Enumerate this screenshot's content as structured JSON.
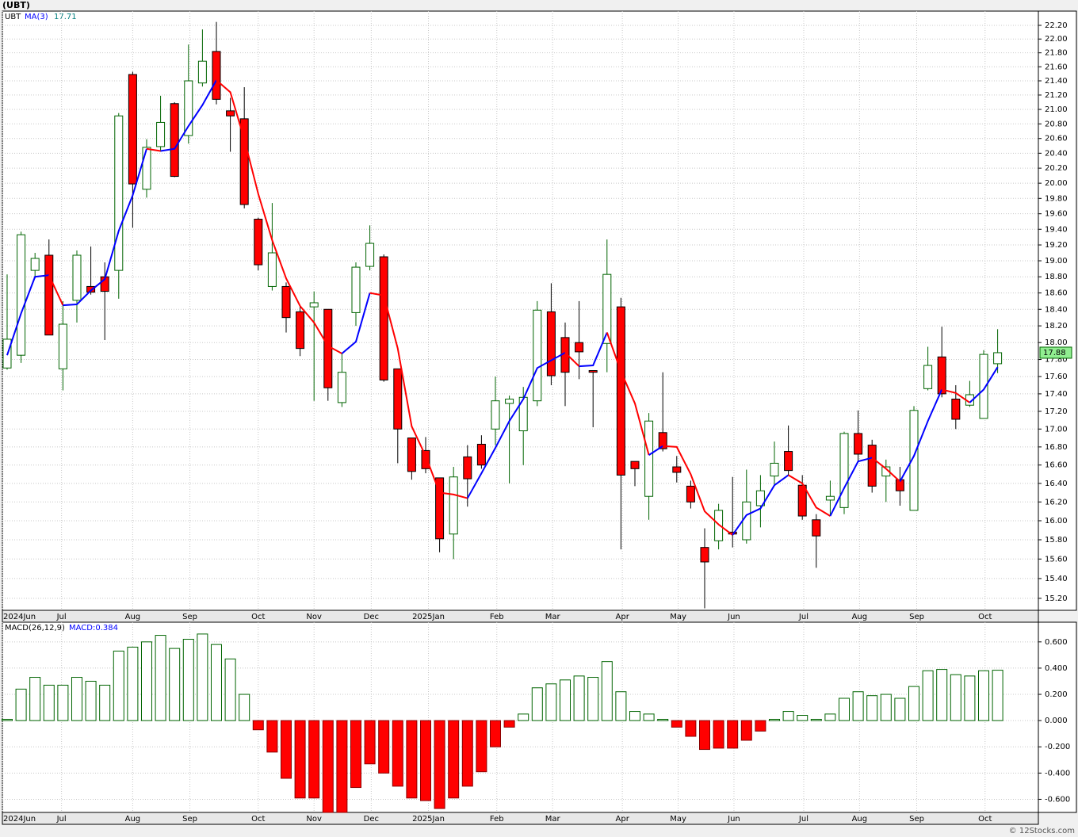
{
  "chart_data": [
    {
      "type": "candlestick",
      "title": "(UBT)",
      "symbol": "UBT",
      "ma_name": "MA(3)",
      "log": true,
      "grid": true,
      "xlim": [
        -0.34,
        73.92
      ],
      "xticks": [
        {
          "value": -0.34,
          "label": "2024Jun"
        },
        {
          "value": 3.9,
          "label": "Jul"
        },
        {
          "value": 9.0,
          "label": "Aug"
        },
        {
          "value": 13.1,
          "label": "Sep"
        },
        {
          "value": 18.0,
          "label": "Oct"
        },
        {
          "value": 22.0,
          "label": "Nov"
        },
        {
          "value": 26.1,
          "label": "Dec"
        },
        {
          "value": 30.2,
          "label": "2025Jan"
        },
        {
          "value": 35.1,
          "label": "Feb"
        },
        {
          "value": 39.1,
          "label": "Mar"
        },
        {
          "value": 44.1,
          "label": "Apr"
        },
        {
          "value": 48.1,
          "label": "May"
        },
        {
          "value": 52.1,
          "label": "Jun"
        },
        {
          "value": 57.1,
          "label": "Jul"
        },
        {
          "value": 61.1,
          "label": "Aug"
        },
        {
          "value": 65.2,
          "label": "Sep"
        },
        {
          "value": 70.1,
          "label": "Oct"
        }
      ],
      "ylim": [
        15.08,
        22.41
      ],
      "yticks": [
        {
          "value": 15.2,
          "label": "15.20"
        },
        {
          "value": 15.4,
          "label": "15.40"
        },
        {
          "value": 15.6,
          "label": "15.60"
        },
        {
          "value": 15.8,
          "label": "15.80"
        },
        {
          "value": 16,
          "label": "16.00"
        },
        {
          "value": 16.2,
          "label": "16.20"
        },
        {
          "value": 16.4,
          "label": "16.40"
        },
        {
          "value": 16.6,
          "label": "16.60"
        },
        {
          "value": 16.8,
          "label": "16.80"
        },
        {
          "value": 17,
          "label": "17.00"
        },
        {
          "value": 17.2,
          "label": "17.20"
        },
        {
          "value": 17.4,
          "label": "17.40"
        },
        {
          "value": 17.6,
          "label": "17.60"
        },
        {
          "value": 17.8,
          "label": "17.80"
        },
        {
          "value": 18,
          "label": "18.00"
        },
        {
          "value": 18.2,
          "label": "18.20"
        },
        {
          "value": 18.4,
          "label": "18.40"
        },
        {
          "value": 18.6,
          "label": "18.60"
        },
        {
          "value": 18.8,
          "label": "18.80"
        },
        {
          "value": 19,
          "label": "19.00"
        },
        {
          "value": 19.2,
          "label": "19.20"
        },
        {
          "value": 19.4,
          "label": "19.40"
        },
        {
          "value": 19.6,
          "label": "19.60"
        },
        {
          "value": 19.8,
          "label": "19.80"
        },
        {
          "value": 20,
          "label": "20.00"
        },
        {
          "value": 20.2,
          "label": "20.20"
        },
        {
          "value": 20.4,
          "label": "20.40"
        },
        {
          "value": 20.6,
          "label": "20.60"
        },
        {
          "value": 20.8,
          "label": "20.80"
        },
        {
          "value": 21,
          "label": "21.00"
        },
        {
          "value": 21.2,
          "label": "21.20"
        },
        {
          "value": 21.4,
          "label": "21.40"
        },
        {
          "value": 21.6,
          "label": "21.60"
        },
        {
          "value": 21.8,
          "label": "21.80"
        },
        {
          "value": 22,
          "label": "22.00"
        },
        {
          "value": 22.2,
          "label": "22.20"
        }
      ],
      "open": [
        17.7,
        17.85,
        18.88,
        19.07,
        17.69,
        18.51,
        18.68,
        18.8,
        18.88,
        21.49,
        19.92,
        20.49,
        21.08,
        20.64,
        21.37,
        21.82,
        20.98,
        20.87,
        19.53,
        18.68,
        18.68,
        18.37,
        18.43,
        18.4,
        17.3,
        18.36,
        18.93,
        19.05,
        17.69,
        16.9,
        16.76,
        16.46,
        15.86,
        16.69,
        16.83,
        17.0,
        17.29,
        16.98,
        17.32,
        18.37,
        18.06,
        18.0,
        17.67,
        17.99,
        18.43,
        16.64,
        16.26,
        16.96,
        16.58,
        16.37,
        15.72,
        15.79,
        15.88,
        15.8,
        16.16,
        16.48,
        16.75,
        16.38,
        16.01,
        16.22,
        16.14,
        16.95,
        16.82,
        16.48,
        16.44,
        16.11,
        17.46,
        17.83,
        17.34,
        17.27,
        17.12,
        17.75
      ],
      "high": [
        18.83,
        19.37,
        19.1,
        19.27,
        18.5,
        19.13,
        19.18,
        18.98,
        20.95,
        21.53,
        20.59,
        21.19,
        21.1,
        21.92,
        22.14,
        22.25,
        21.16,
        21.31,
        19.55,
        19.74,
        18.73,
        18.44,
        18.62,
        18.4,
        17.87,
        18.98,
        19.45,
        19.08,
        17.69,
        16.9,
        16.91,
        16.46,
        16.58,
        16.82,
        16.93,
        17.6,
        17.38,
        17.48,
        18.5,
        18.72,
        18.24,
        18.5,
        17.67,
        19.27,
        18.54,
        16.64,
        17.18,
        17.65,
        16.7,
        16.43,
        15.92,
        16.18,
        16.47,
        16.55,
        16.49,
        16.86,
        17.04,
        16.49,
        16.07,
        16.43,
        16.97,
        17.21,
        16.88,
        16.66,
        16.58,
        17.26,
        17.95,
        18.19,
        17.5,
        17.55,
        17.91,
        18.16
      ],
      "low": [
        17.68,
        17.76,
        18.78,
        18.09,
        17.44,
        18.24,
        18.58,
        18.03,
        18.53,
        19.42,
        19.81,
        20.42,
        20.08,
        20.53,
        21.32,
        21.07,
        20.42,
        19.67,
        18.88,
        18.63,
        18.12,
        17.84,
        17.32,
        17.32,
        17.25,
        18.2,
        18.88,
        17.54,
        16.62,
        16.44,
        16.51,
        15.67,
        15.6,
        16.15,
        16.56,
        16.82,
        16.4,
        16.6,
        17.26,
        17.5,
        17.26,
        17.57,
        17.02,
        17.65,
        15.7,
        16.37,
        16.01,
        16.75,
        16.41,
        16.13,
        15.1,
        15.7,
        15.72,
        15.76,
        15.93,
        16.38,
        16.49,
        16.01,
        15.51,
        16.05,
        16.07,
        16.64,
        16.3,
        16.2,
        16.16,
        16.11,
        17.44,
        17.36,
        17.0,
        17.25,
        17.12,
        17.64
      ],
      "close": [
        18.04,
        19.33,
        19.03,
        18.09,
        18.22,
        19.07,
        18.61,
        18.62,
        20.91,
        19.99,
        20.48,
        20.82,
        20.09,
        21.4,
        21.68,
        21.14,
        20.91,
        19.72,
        18.95,
        19.1,
        18.3,
        17.93,
        18.48,
        17.47,
        17.65,
        18.92,
        19.22,
        17.56,
        17.0,
        16.53,
        16.56,
        15.81,
        16.47,
        16.45,
        16.6,
        17.32,
        17.34,
        17.36,
        18.39,
        17.61,
        17.65,
        17.89,
        17.65,
        18.83,
        16.49,
        16.56,
        17.09,
        16.78,
        16.52,
        16.2,
        15.57,
        16.11,
        15.86,
        16.2,
        16.32,
        16.62,
        16.54,
        16.05,
        15.84,
        16.26,
        16.95,
        16.72,
        16.37,
        16.58,
        16.32,
        17.21,
        17.73,
        17.4,
        17.11,
        17.39,
        17.86,
        17.88
      ],
      "ma": [
        17.85,
        18.35,
        18.8,
        18.82,
        18.45,
        18.46,
        18.63,
        18.77,
        19.38,
        19.84,
        20.46,
        20.43,
        20.46,
        20.77,
        21.06,
        21.41,
        21.24,
        20.59,
        19.86,
        19.26,
        18.78,
        18.44,
        18.24,
        17.96,
        17.87,
        18.01,
        18.6,
        18.57,
        17.93,
        17.03,
        16.7,
        16.3,
        16.28,
        16.24,
        16.51,
        16.79,
        17.09,
        17.34,
        17.7,
        17.79,
        17.88,
        17.72,
        17.73,
        18.12,
        17.66,
        17.29,
        16.71,
        16.81,
        16.8,
        16.5,
        16.1,
        15.96,
        15.85,
        16.06,
        16.13,
        16.38,
        16.49,
        16.4,
        16.14,
        16.05,
        16.35,
        16.64,
        16.68,
        16.56,
        16.42,
        16.7,
        17.09,
        17.45,
        17.41,
        17.3,
        17.45,
        17.71
      ],
      "up_color": "#006400",
      "down_color": "#ff0000",
      "ma_up_color": "#0000ff",
      "ma_down_color": "#ff0000",
      "last_color": "#90ee90"
    },
    {
      "type": "bar",
      "title": "MACD(26,12,9)",
      "value_label": "MACD:0.384",
      "grid": true,
      "xlim": [
        -0.34,
        73.92
      ],
      "xticks": [
        {
          "value": -0.34,
          "label": "2024Jun"
        },
        {
          "value": 3.9,
          "label": "Jul"
        },
        {
          "value": 9.0,
          "label": "Aug"
        },
        {
          "value": 13.1,
          "label": "Sep"
        },
        {
          "value": 18.0,
          "label": "Oct"
        },
        {
          "value": 22.0,
          "label": "Nov"
        },
        {
          "value": 26.1,
          "label": "Dec"
        },
        {
          "value": 30.2,
          "label": "2025Jan"
        },
        {
          "value": 35.1,
          "label": "Feb"
        },
        {
          "value": 39.1,
          "label": "Mar"
        },
        {
          "value": 44.1,
          "label": "Apr"
        },
        {
          "value": 48.1,
          "label": "May"
        },
        {
          "value": 52.1,
          "label": "Jun"
        },
        {
          "value": 57.1,
          "label": "Jul"
        },
        {
          "value": 61.1,
          "label": "Aug"
        },
        {
          "value": 65.2,
          "label": "Sep"
        },
        {
          "value": 70.1,
          "label": "Oct"
        }
      ],
      "ylim": [
        -0.7,
        0.75
      ],
      "yticks": [
        {
          "value": -0.6,
          "label": "-0.600"
        },
        {
          "value": -0.4,
          "label": "-0.400"
        },
        {
          "value": -0.2,
          "label": "-0.200"
        },
        {
          "value": 0,
          "label": "0.000"
        },
        {
          "value": 0.2,
          "label": "0.200"
        },
        {
          "value": 0.4,
          "label": "0.400"
        },
        {
          "value": 0.6,
          "label": "0.600"
        }
      ],
      "values": [
        0.01,
        0.24,
        0.33,
        0.27,
        0.27,
        0.33,
        0.3,
        0.27,
        0.53,
        0.56,
        0.6,
        0.65,
        0.55,
        0.62,
        0.66,
        0.58,
        0.47,
        0.2,
        -0.07,
        -0.24,
        -0.44,
        -0.59,
        -0.59,
        -0.7,
        -0.7,
        -0.51,
        -0.33,
        -0.4,
        -0.5,
        -0.59,
        -0.61,
        -0.67,
        -0.59,
        -0.5,
        -0.39,
        -0.2,
        -0.05,
        0.05,
        0.25,
        0.28,
        0.31,
        0.34,
        0.33,
        0.45,
        0.22,
        0.07,
        0.05,
        0.01,
        -0.05,
        -0.12,
        -0.22,
        -0.21,
        -0.21,
        -0.15,
        -0.08,
        0.01,
        0.07,
        0.04,
        0.01,
        0.05,
        0.17,
        0.22,
        0.19,
        0.2,
        0.17,
        0.26,
        0.38,
        0.39,
        0.35,
        0.34,
        0.38,
        0.384
      ],
      "pos_color": "#006400",
      "neg_color": "#ff0000"
    }
  ],
  "footer": "© 12Stocks.com"
}
